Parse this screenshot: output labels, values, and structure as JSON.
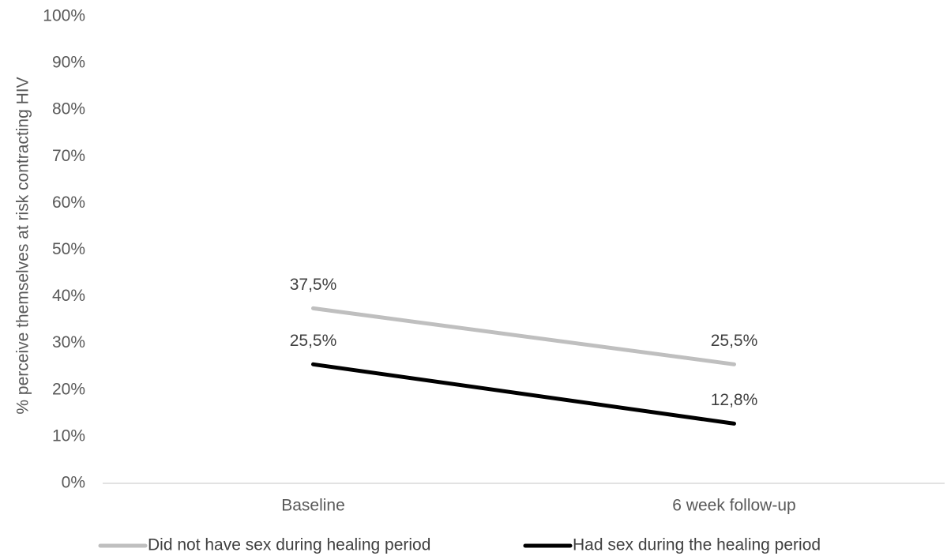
{
  "chart_data": {
    "type": "line",
    "categories": [
      "Baseline",
      "6 week follow-up"
    ],
    "series": [
      {
        "name": "Did not have sex during  healing period",
        "values": [
          37.5,
          25.5
        ],
        "labels": [
          "37,5%",
          "25,5%"
        ],
        "color": "#bfbfbf"
      },
      {
        "name": "Had sex during the healing period",
        "values": [
          25.5,
          12.8
        ],
        "labels": [
          "25,5%",
          "12,8%"
        ],
        "color": "#000000"
      }
    ],
    "ylabel": "% perceive themselves at risk contracting HIV",
    "yticks": [
      "0%",
      "10%",
      "20%",
      "30%",
      "40%",
      "50%",
      "60%",
      "70%",
      "80%",
      "90%",
      "100%"
    ],
    "ylim": [
      0,
      100
    ],
    "grid": false,
    "legend": "bottom"
  }
}
